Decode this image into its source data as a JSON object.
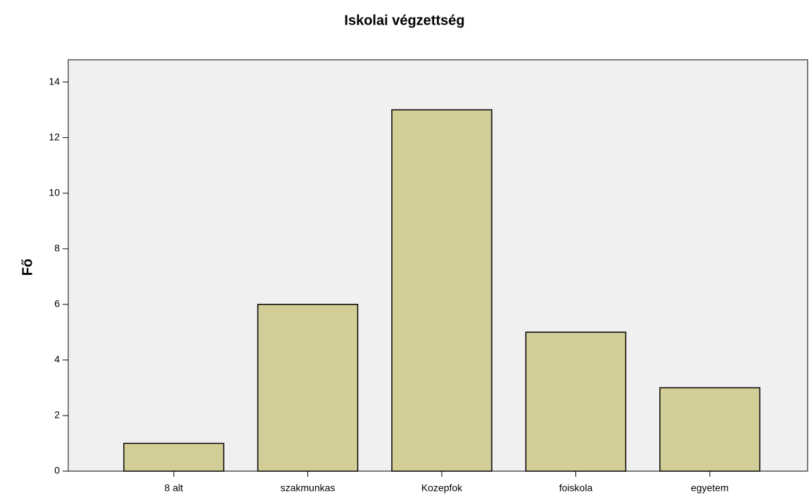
{
  "chart_data": {
    "type": "bar",
    "title": "Iskolai végzettség",
    "y_label": "Fő",
    "categories": [
      "8 alt",
      "szakmunkas",
      "Kozepfok",
      "foiskola",
      "egyetem"
    ],
    "values": [
      1,
      6,
      13,
      5,
      3
    ],
    "color": "#d3ce97",
    "ylim": [
      0,
      14.8
    ],
    "yticks": [
      0,
      2,
      4,
      6,
      8,
      10,
      12,
      14
    ],
    "grid": false
  }
}
